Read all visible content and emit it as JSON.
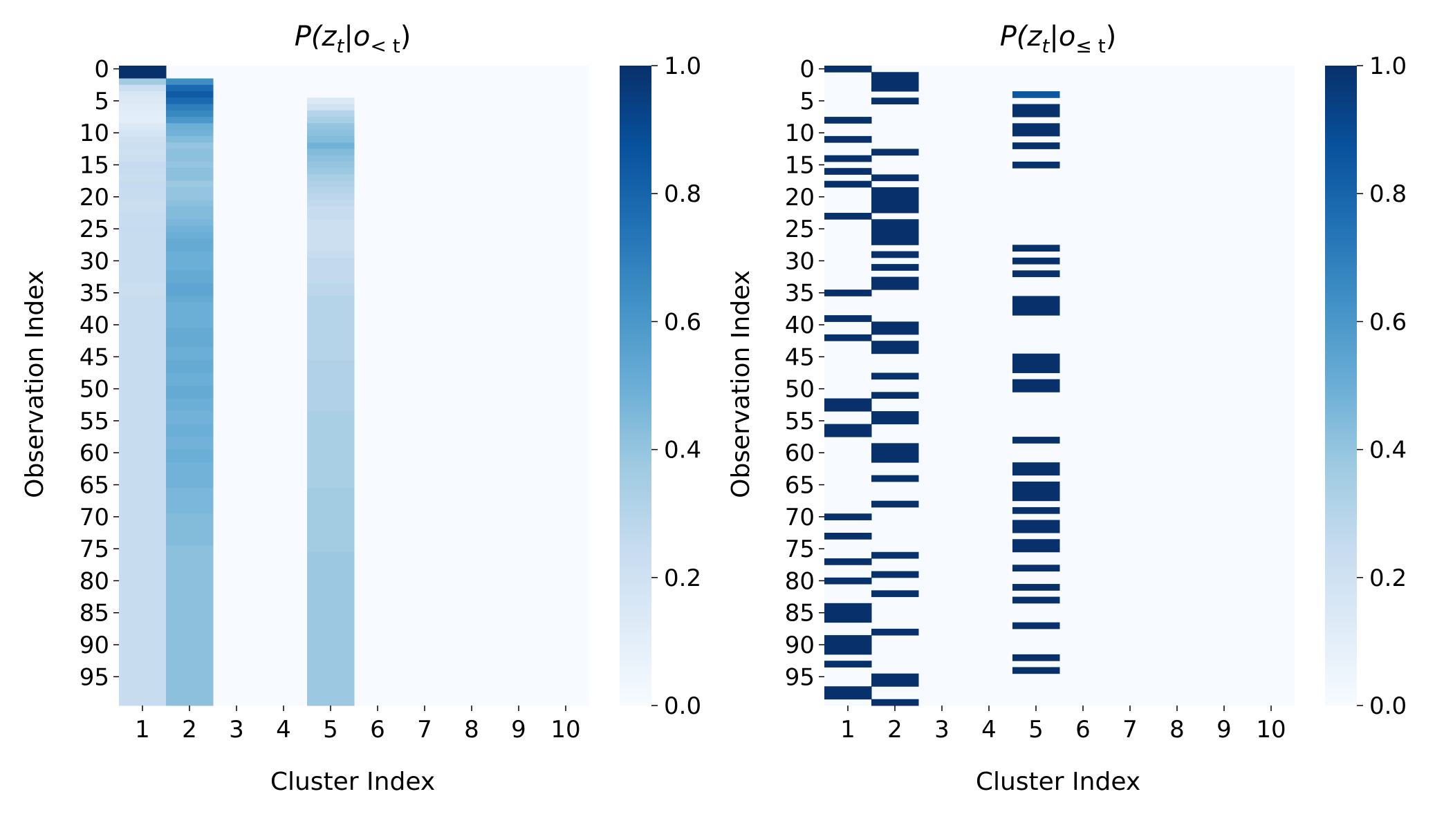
{
  "chart_data": [
    {
      "type": "heatmap",
      "title_main": "P(z",
      "title_sub": "t",
      "title_mid": "|o",
      "title_sub2": "< t",
      "title_end": ")",
      "xlabel": "Cluster Index",
      "ylabel": "Observation Index",
      "x_ticks": [
        "1",
        "2",
        "3",
        "4",
        "5",
        "6",
        "7",
        "8",
        "9",
        "10"
      ],
      "y_ticks": [
        "0",
        "5",
        "10",
        "15",
        "20",
        "25",
        "30",
        "35",
        "40",
        "45",
        "50",
        "55",
        "60",
        "65",
        "70",
        "75",
        "80",
        "85",
        "90",
        "95"
      ],
      "colorbar": {
        "range": [
          0.0,
          1.0
        ],
        "ticks": [
          "0.0",
          "0.2",
          "0.4",
          "0.6",
          "0.8",
          "1.0"
        ],
        "colormap": "Blues"
      },
      "n_rows": 100,
      "n_cols": 10,
      "values_by_cluster": {
        "1": [
          1.0,
          1.0,
          0.36,
          0.22,
          0.16,
          0.14,
          0.12,
          0.11,
          0.1,
          0.14,
          0.17,
          0.2,
          0.22,
          0.21,
          0.22,
          0.25,
          0.24,
          0.23,
          0.25,
          0.24,
          0.24,
          0.23,
          0.23,
          0.24,
          0.24,
          0.25,
          0.24,
          0.24,
          0.24,
          0.24,
          0.24,
          0.24,
          0.24,
          0.24,
          0.23,
          0.23,
          0.24,
          0.24,
          0.24,
          0.24,
          0.24,
          0.24,
          0.24,
          0.24,
          0.24,
          0.24,
          0.24,
          0.24,
          0.24,
          0.24,
          0.24,
          0.24,
          0.24,
          0.24,
          0.24,
          0.24,
          0.24,
          0.24,
          0.24,
          0.24,
          0.24,
          0.24,
          0.24,
          0.24,
          0.24,
          0.24,
          0.24,
          0.24,
          0.24,
          0.24,
          0.24,
          0.24,
          0.24,
          0.24,
          0.24,
          0.24,
          0.24,
          0.24,
          0.24,
          0.24,
          0.24,
          0.24,
          0.24,
          0.24,
          0.24,
          0.24,
          0.24,
          0.24,
          0.24,
          0.24,
          0.24,
          0.24,
          0.24,
          0.24,
          0.24,
          0.24,
          0.24,
          0.24,
          0.24,
          0.24
        ],
        "2": [
          0.0,
          0.0,
          0.64,
          0.78,
          0.84,
          0.78,
          0.7,
          0.66,
          0.6,
          0.5,
          0.48,
          0.44,
          0.4,
          0.42,
          0.42,
          0.4,
          0.42,
          0.42,
          0.38,
          0.4,
          0.4,
          0.42,
          0.44,
          0.44,
          0.46,
          0.48,
          0.5,
          0.52,
          0.52,
          0.5,
          0.5,
          0.5,
          0.52,
          0.52,
          0.54,
          0.54,
          0.52,
          0.5,
          0.5,
          0.5,
          0.5,
          0.52,
          0.52,
          0.52,
          0.5,
          0.5,
          0.52,
          0.52,
          0.5,
          0.5,
          0.52,
          0.52,
          0.5,
          0.5,
          0.48,
          0.48,
          0.5,
          0.5,
          0.48,
          0.48,
          0.5,
          0.5,
          0.48,
          0.48,
          0.48,
          0.48,
          0.46,
          0.46,
          0.46,
          0.46,
          0.44,
          0.44,
          0.44,
          0.44,
          0.44,
          0.42,
          0.42,
          0.42,
          0.42,
          0.42,
          0.42,
          0.42,
          0.42,
          0.42,
          0.42,
          0.42,
          0.42,
          0.42,
          0.42,
          0.42,
          0.42,
          0.42,
          0.42,
          0.42,
          0.42,
          0.42,
          0.42,
          0.42,
          0.42,
          0.42
        ],
        "5": [
          0.0,
          0.0,
          0.0,
          0.0,
          0.0,
          0.14,
          0.2,
          0.3,
          0.34,
          0.4,
          0.42,
          0.44,
          0.48,
          0.44,
          0.42,
          0.4,
          0.38,
          0.34,
          0.32,
          0.3,
          0.28,
          0.26,
          0.24,
          0.24,
          0.22,
          0.22,
          0.22,
          0.22,
          0.22,
          0.24,
          0.26,
          0.26,
          0.26,
          0.26,
          0.28,
          0.28,
          0.3,
          0.3,
          0.3,
          0.3,
          0.3,
          0.3,
          0.3,
          0.3,
          0.3,
          0.3,
          0.32,
          0.32,
          0.32,
          0.32,
          0.32,
          0.32,
          0.32,
          0.32,
          0.34,
          0.34,
          0.34,
          0.34,
          0.34,
          0.34,
          0.34,
          0.34,
          0.34,
          0.34,
          0.34,
          0.34,
          0.36,
          0.36,
          0.36,
          0.36,
          0.36,
          0.36,
          0.36,
          0.36,
          0.36,
          0.36,
          0.38,
          0.38,
          0.38,
          0.38,
          0.38,
          0.38,
          0.38,
          0.38,
          0.38,
          0.38,
          0.38,
          0.38,
          0.38,
          0.38,
          0.38,
          0.38,
          0.38,
          0.38,
          0.38,
          0.38,
          0.38,
          0.38,
          0.38,
          0.38
        ]
      }
    },
    {
      "type": "heatmap",
      "title_main": "P(z",
      "title_sub": "t",
      "title_mid": "|o",
      "title_sub2": "≤ t",
      "title_end": ")",
      "xlabel": "Cluster Index",
      "ylabel": "Observation Index",
      "x_ticks": [
        "1",
        "2",
        "3",
        "4",
        "5",
        "6",
        "7",
        "8",
        "9",
        "10"
      ],
      "y_ticks": [
        "0",
        "5",
        "10",
        "15",
        "20",
        "25",
        "30",
        "35",
        "40",
        "45",
        "50",
        "55",
        "60",
        "65",
        "70",
        "75",
        "80",
        "85",
        "90",
        "95"
      ],
      "colorbar": {
        "range": [
          0.0,
          1.0
        ],
        "ticks": [
          "0.0",
          "0.2",
          "0.4",
          "0.6",
          "0.8",
          "1.0"
        ],
        "colormap": "Blues"
      },
      "n_rows": 100,
      "n_cols": 10,
      "argmax_cluster_per_row": [
        1,
        2,
        2,
        2,
        5,
        2,
        5,
        5,
        1,
        5,
        5,
        1,
        5,
        2,
        1,
        5,
        1,
        2,
        1,
        2,
        2,
        2,
        2,
        1,
        2,
        2,
        2,
        2,
        5,
        2,
        5,
        2,
        5,
        2,
        2,
        1,
        5,
        5,
        5,
        1,
        2,
        2,
        1,
        2,
        2,
        5,
        5,
        5,
        2,
        5,
        5,
        2,
        1,
        1,
        2,
        2,
        1,
        1,
        5,
        2,
        2,
        2,
        5,
        5,
        2,
        5,
        5,
        5,
        2,
        5,
        1,
        5,
        5,
        1,
        5,
        5,
        2,
        1,
        5,
        2,
        1,
        5,
        2,
        5,
        1,
        1,
        1,
        5,
        2,
        1,
        1,
        1,
        5,
        1,
        5,
        2,
        2,
        1,
        1,
        2
      ],
      "light_cells": [
        {
          "row": 4,
          "cluster": 1,
          "value": 0.06
        },
        {
          "row": 4,
          "cluster": 5,
          "value": 0.85
        }
      ]
    }
  ]
}
